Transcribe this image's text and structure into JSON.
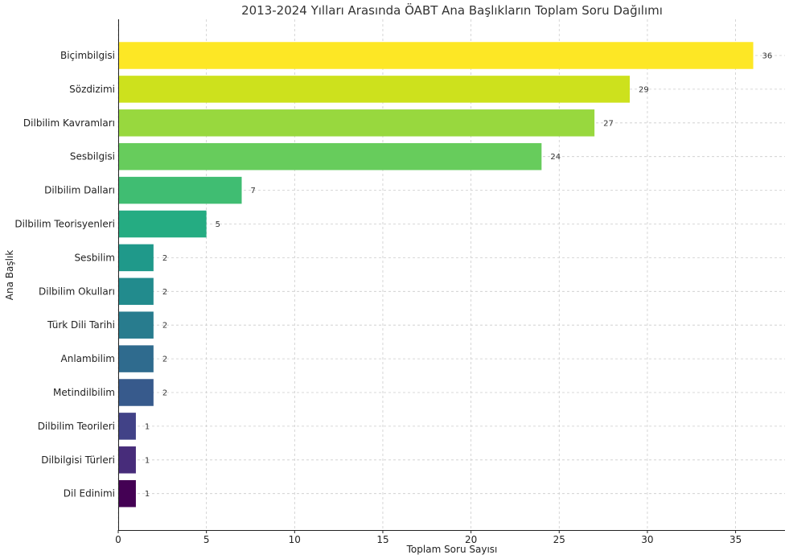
{
  "chart_data": {
    "type": "bar",
    "orientation": "horizontal",
    "title": "2013-2024 Yılları Arasında ÖABT Ana Başlıkların Toplam Soru Dağılımı",
    "xlabel": "Toplam Soru Sayısı",
    "ylabel": "Ana Başlık",
    "xlim": [
      0,
      37.8
    ],
    "xticks": [
      0,
      5,
      10,
      15,
      20,
      25,
      30,
      35
    ],
    "grid": true,
    "categories": [
      "Biçimbilgisi",
      "Sözdizimi",
      "Dilbilim Kavramları",
      "Sesbilgisi",
      "Dilbilim Dalları",
      "Dilbilim Teorisyenleri",
      "Sesbilim",
      "Dilbilim Okulları",
      "Türk Dili Tarihi",
      "Anlambilim",
      "Metindilbilim",
      "Dilbilim Teorileri",
      "Dilbilgisi Türleri",
      "Dil Edinimi"
    ],
    "values": [
      36,
      29,
      27,
      24,
      7,
      5,
      2,
      2,
      2,
      2,
      2,
      1,
      1,
      1
    ],
    "colors": [
      "#fde725",
      "#cde11d",
      "#98d83e",
      "#67cc5c",
      "#40bd72",
      "#25ac82",
      "#1f998a",
      "#228b8d",
      "#287c8e",
      "#2f6b8e",
      "#375a8c",
      "#414287",
      "#472c7a",
      "#440154"
    ]
  }
}
